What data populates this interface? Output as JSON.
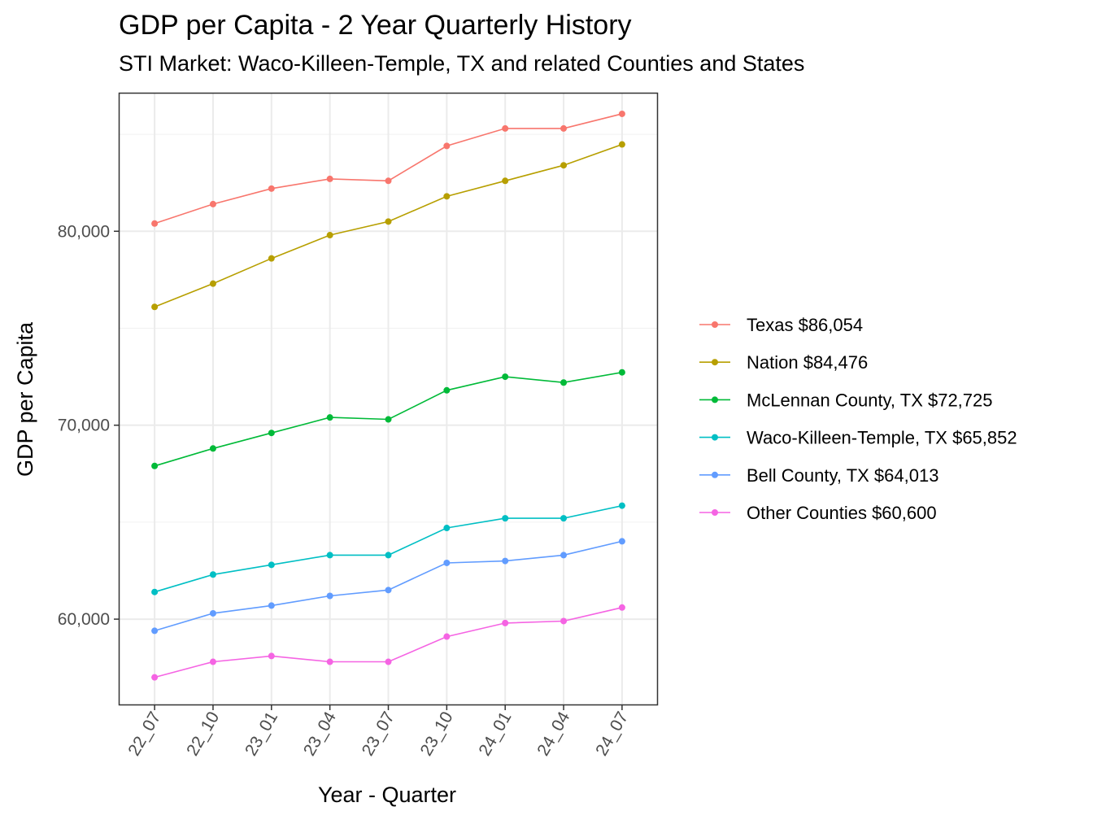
{
  "title": "GDP per Capita - 2 Year Quarterly History",
  "subtitle": "STI Market: Waco-Killeen-Temple, TX and related Counties and States",
  "chart_data": {
    "type": "line",
    "title": "GDP per Capita - 2 Year Quarterly History",
    "subtitle": "STI Market: Waco-Killeen-Temple, TX and related Counties and States",
    "xlabel": "Year - Quarter",
    "ylabel": "GDP per Capita",
    "categories": [
      "22_07",
      "22_10",
      "23_01",
      "23_04",
      "23_07",
      "23_10",
      "24_01",
      "24_04",
      "24_07"
    ],
    "ylim": [
      55600,
      87100
    ],
    "yticks": [
      60000,
      70000,
      80000
    ],
    "ytick_labels": [
      "60,000",
      "70,000",
      "80,000"
    ],
    "grid": true,
    "legend_position": "right",
    "series": [
      {
        "name": "Texas $86,054",
        "color": "#F8766D",
        "values": [
          80400,
          81400,
          82200,
          82700,
          82600,
          84400,
          85300,
          85300,
          86054
        ]
      },
      {
        "name": "Nation $84,476",
        "color": "#B79F00",
        "values": [
          76100,
          77300,
          78600,
          79800,
          80500,
          81800,
          82600,
          83400,
          84476
        ]
      },
      {
        "name": "McLennan County, TX $72,725",
        "color": "#00BA38",
        "values": [
          67900,
          68800,
          69600,
          70400,
          70300,
          71800,
          72500,
          72200,
          72725
        ]
      },
      {
        "name": "Waco-Killeen-Temple, TX $65,852",
        "color": "#00BFC4",
        "values": [
          61400,
          62300,
          62800,
          63300,
          63300,
          64700,
          65200,
          65200,
          65852
        ]
      },
      {
        "name": "Bell County, TX $64,013",
        "color": "#619CFF",
        "values": [
          59400,
          60300,
          60700,
          61200,
          61500,
          62900,
          63000,
          63300,
          64013
        ]
      },
      {
        "name": "Other Counties $60,600",
        "color": "#F564E3",
        "values": [
          57000,
          57800,
          58100,
          57800,
          57800,
          59100,
          59800,
          59900,
          60600
        ]
      }
    ]
  }
}
